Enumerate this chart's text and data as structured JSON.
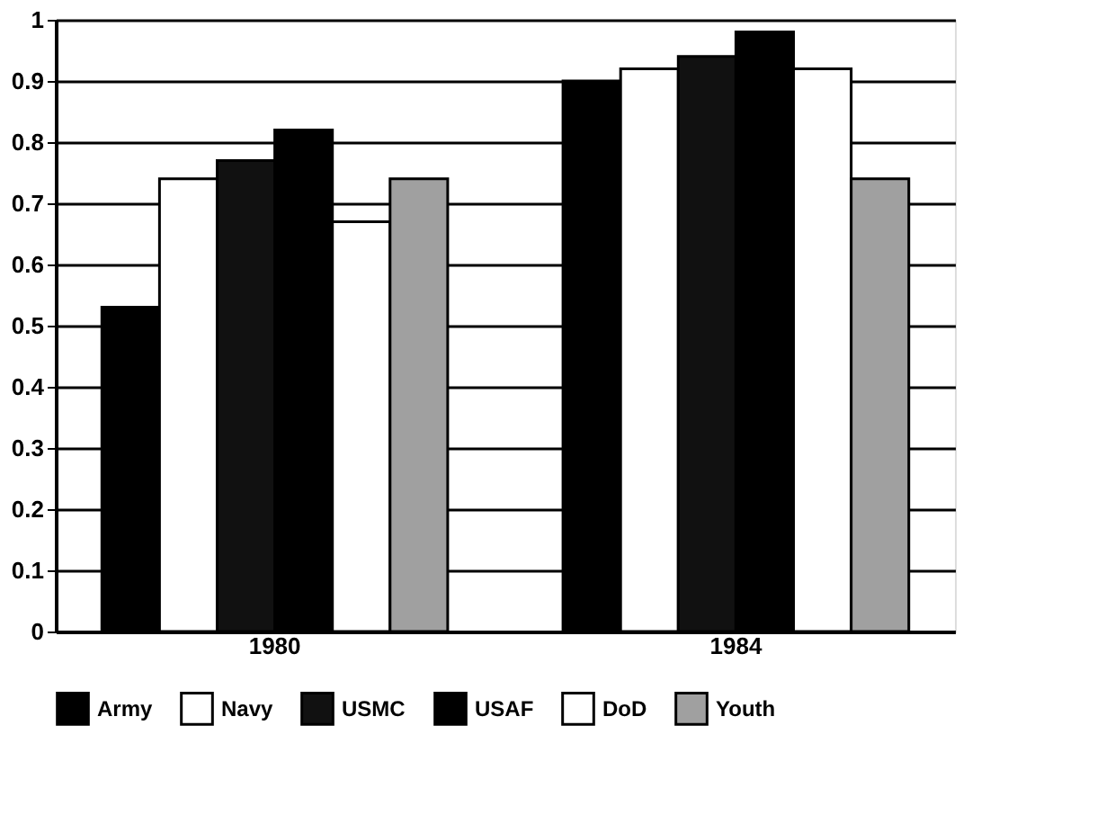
{
  "chart_data": {
    "type": "bar",
    "categories": [
      "1980",
      "1984"
    ],
    "series": [
      {
        "name": "Army",
        "color": "#000000",
        "values": [
          0.53,
          0.9
        ]
      },
      {
        "name": "Navy",
        "color": "#ffffff",
        "values": [
          0.74,
          0.92
        ]
      },
      {
        "name": "USMC",
        "color": "#111111",
        "values": [
          0.77,
          0.94
        ]
      },
      {
        "name": "USAF",
        "color": "#000000",
        "values": [
          0.82,
          0.98
        ]
      },
      {
        "name": "DoD",
        "color": "#ffffff",
        "values": [
          0.67,
          0.92
        ]
      },
      {
        "name": "Youth",
        "color": "#a0a0a0",
        "values": [
          0.74,
          0.74
        ]
      }
    ],
    "ylim": [
      0,
      1
    ],
    "yticks": [
      0,
      0.1,
      0.2,
      0.3,
      0.4,
      0.5,
      0.6,
      0.7,
      0.8,
      0.9,
      1
    ],
    "grid": "y",
    "legend": "bottom"
  }
}
